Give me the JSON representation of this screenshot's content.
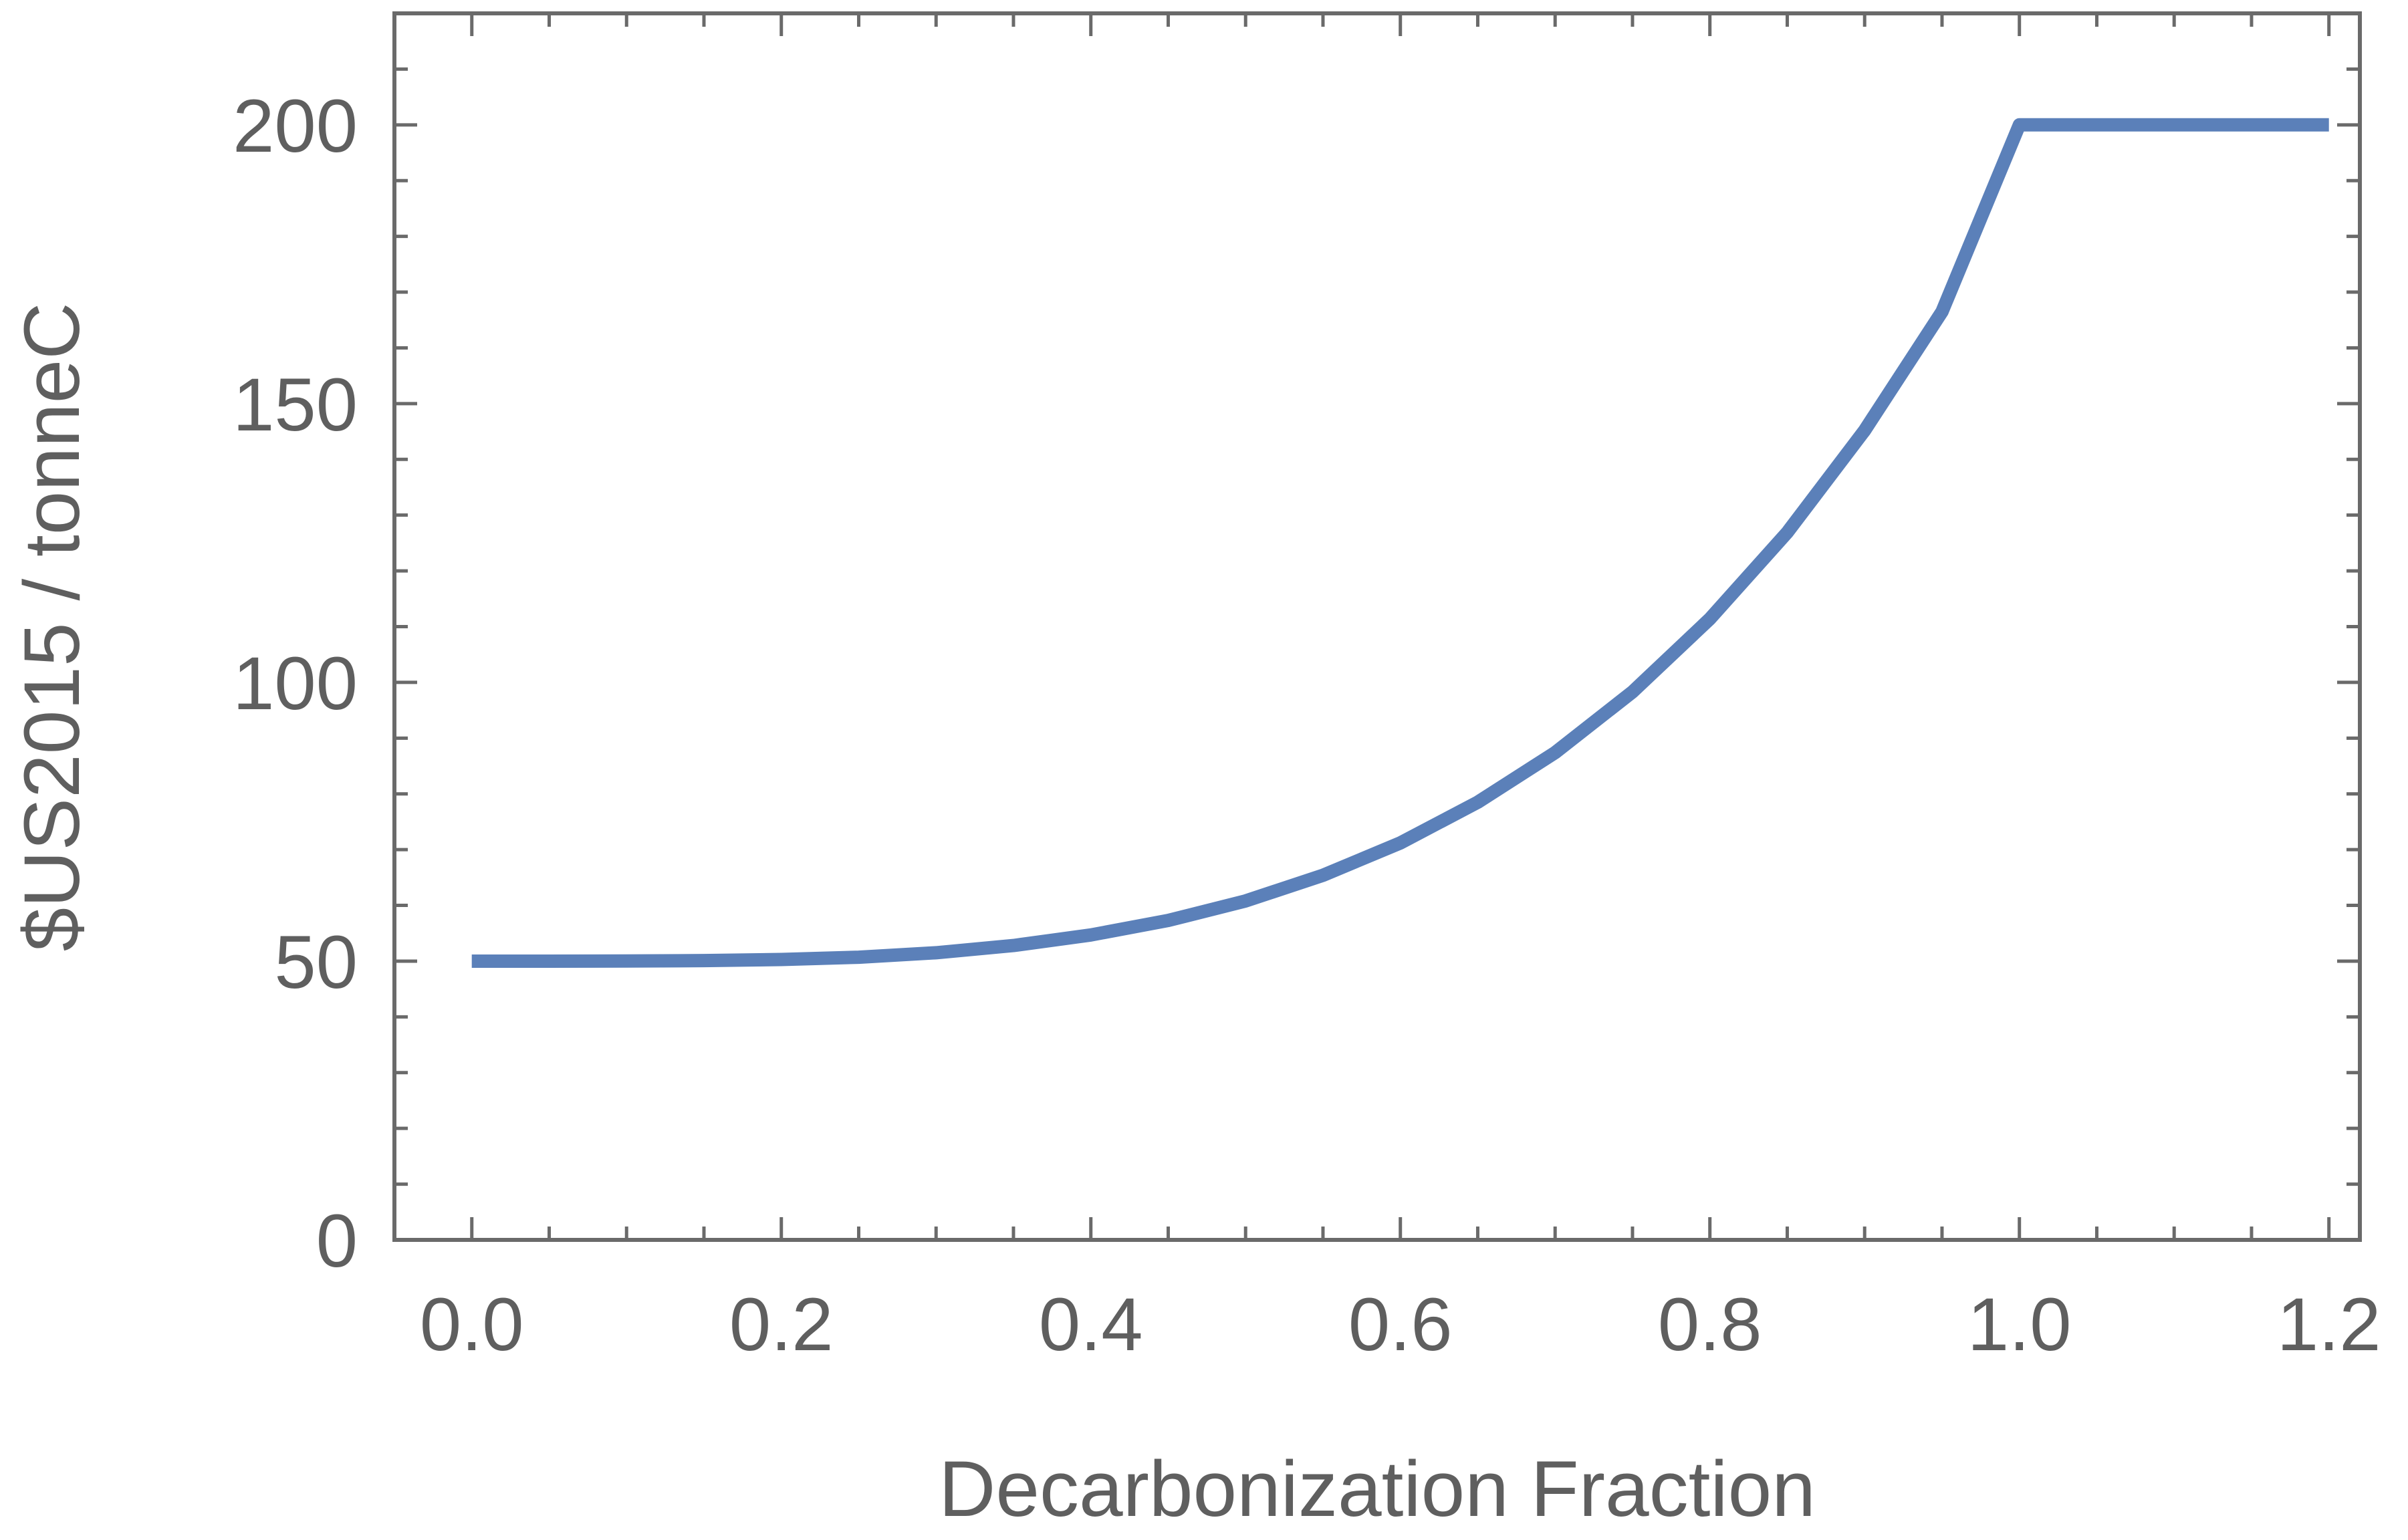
{
  "chart_data": {
    "type": "line",
    "title": "",
    "xlabel": "Decarbonization Fraction",
    "ylabel": "$US2015 / tonneC",
    "xlim": [
      -0.05,
      1.22
    ],
    "ylim": [
      0,
      220
    ],
    "x_ticks": [
      0.0,
      0.2,
      0.4,
      0.6,
      0.8,
      1.0,
      1.2
    ],
    "x_tick_labels": [
      "0.0",
      "0.2",
      "0.4",
      "0.6",
      "0.8",
      "1.0",
      "1.2"
    ],
    "y_ticks": [
      0,
      50,
      100,
      150,
      200
    ],
    "y_tick_labels": [
      "0",
      "50",
      "100",
      "150",
      "200"
    ],
    "grid": false,
    "frame": true,
    "series": [
      {
        "color": "#5b80b9",
        "x": [
          0.0,
          0.05,
          0.1,
          0.15,
          0.2,
          0.25,
          0.3,
          0.35,
          0.4,
          0.45,
          0.5,
          0.55,
          0.6,
          0.65,
          0.7,
          0.75,
          0.8,
          0.85,
          0.9,
          0.95,
          1.0,
          1.05,
          1.1,
          1.15,
          1.2
        ],
        "y": [
          50.0,
          50.0,
          50.02,
          50.1,
          50.3,
          50.7,
          51.5,
          52.8,
          54.7,
          57.3,
          60.8,
          65.4,
          71.2,
          78.5,
          87.4,
          98.3,
          111.4,
          126.9,
          145.2,
          166.5,
          200.0,
          200.0,
          200.0,
          200.0,
          200.0
        ]
      }
    ]
  }
}
